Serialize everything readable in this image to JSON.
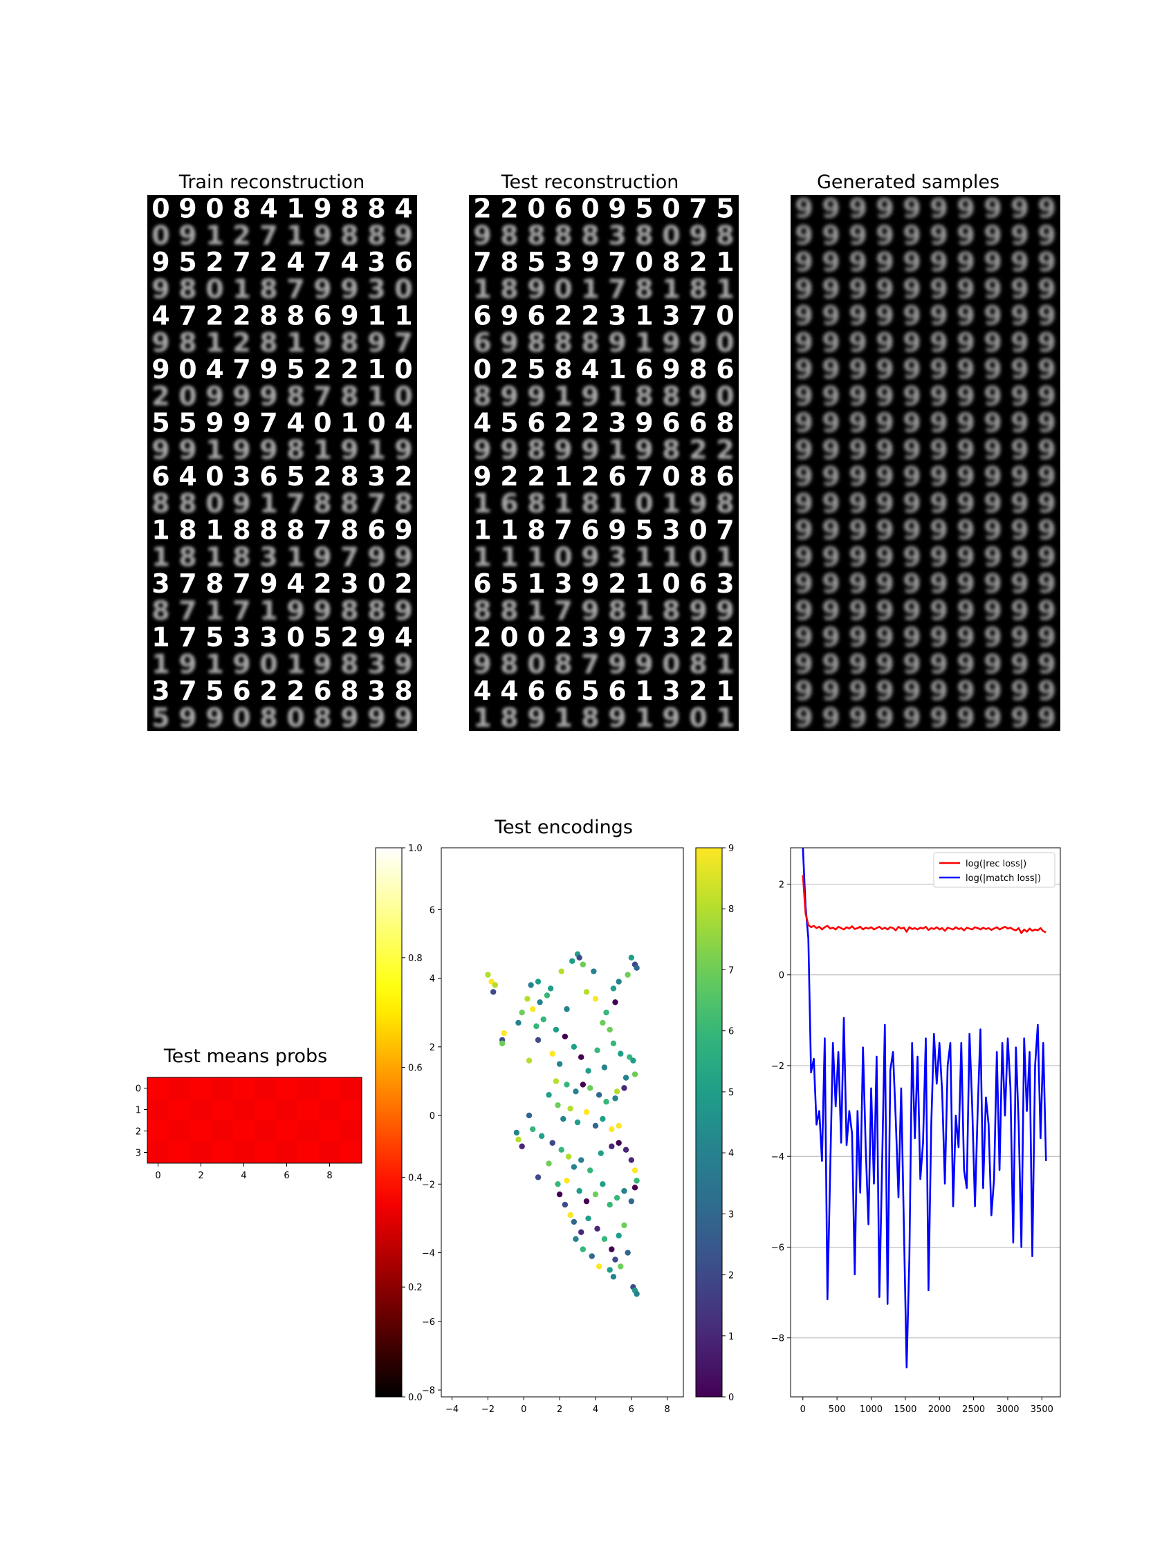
{
  "titles": {
    "train": "Train reconstruction",
    "test": "Test reconstruction",
    "generated": "Generated samples",
    "means": "Test means probs",
    "encodings": "Test encodings"
  },
  "image_grids": {
    "train_rows": [
      "0908419884",
      "0912719889",
      "9527247436",
      "9801879930",
      "4722886911",
      "9812819897",
      "9047952210",
      "2099987810",
      "5599740104",
      "9919981919",
      "6403652832",
      "8809178878",
      "1818887869",
      "1818319799",
      "3787942302",
      "8717199889",
      "1753305294",
      "1919019839",
      "3756226838",
      "5990808999"
    ],
    "test_rows": [
      "2206095075",
      "9888838098",
      "7853970821",
      "1890178181",
      "6962231370",
      "6988891990",
      "0258416986",
      "8991918890",
      "4562239668",
      "9989919822",
      "9221267086",
      "1681810198",
      "1187695307",
      "1110931101",
      "6513921063",
      "8817981899",
      "2002397322",
      "9808799081",
      "4466561321",
      "1891891901"
    ],
    "generated_glyph": "9"
  },
  "chart_data": [
    {
      "type": "heatmap",
      "title": "Test means probs",
      "rows": 4,
      "cols": 10,
      "xticks": [
        "0",
        "2",
        "4",
        "6",
        "8"
      ],
      "yticks": [
        "0",
        "1",
        "2",
        "3"
      ],
      "colormap": "hot",
      "values": [
        [
          0.36,
          0.35,
          0.36,
          0.35,
          0.36,
          0.35,
          0.36,
          0.35,
          0.36,
          0.35
        ],
        [
          0.35,
          0.36,
          0.35,
          0.36,
          0.35,
          0.36,
          0.35,
          0.36,
          0.35,
          0.36
        ],
        [
          0.36,
          0.35,
          0.36,
          0.35,
          0.36,
          0.35,
          0.36,
          0.35,
          0.36,
          0.35
        ],
        [
          0.35,
          0.36,
          0.35,
          0.36,
          0.35,
          0.36,
          0.35,
          0.36,
          0.35,
          0.36
        ]
      ],
      "colorbar": {
        "range": [
          0,
          1
        ],
        "ticks": [
          "0.0",
          "0.2",
          "0.4",
          "0.6",
          "0.8",
          "1.0"
        ]
      }
    },
    {
      "type": "scatter",
      "title": "Test encodings",
      "xlim": [
        -4.6,
        8.9
      ],
      "ylim": [
        -8.2,
        7.8
      ],
      "xticks": [
        "-4",
        "-2",
        "0",
        "2",
        "4",
        "6",
        "8"
      ],
      "yticks": [
        "-8",
        "-6",
        "-4",
        "-2",
        "0",
        "2",
        "4",
        "6"
      ],
      "colormap": "viridis",
      "colorbar": {
        "range": [
          0,
          9
        ],
        "ticks": [
          "0",
          "1",
          "2",
          "3",
          "4",
          "5",
          "6",
          "7",
          "8",
          "9"
        ]
      },
      "points": [
        [
          -2.0,
          4.1,
          8
        ],
        [
          -1.8,
          3.9,
          9
        ],
        [
          -1.6,
          3.8,
          8
        ],
        [
          -1.7,
          3.6,
          2
        ],
        [
          -1.2,
          2.2,
          2
        ],
        [
          -1.1,
          2.4,
          9
        ],
        [
          -1.2,
          2.1,
          7
        ],
        [
          -0.3,
          2.7,
          4
        ],
        [
          -0.1,
          3.0,
          7
        ],
        [
          0.2,
          3.4,
          8
        ],
        [
          0.4,
          3.8,
          4
        ],
        [
          0.5,
          3.1,
          9
        ],
        [
          0.8,
          3.9,
          5
        ],
        [
          0.9,
          3.3,
          4
        ],
        [
          1.1,
          2.8,
          6
        ],
        [
          1.3,
          3.5,
          6
        ],
        [
          0.7,
          2.6,
          6
        ],
        [
          1.5,
          3.7,
          5
        ],
        [
          1.8,
          2.5,
          5
        ],
        [
          2.1,
          4.2,
          8
        ],
        [
          2.4,
          3.1,
          4
        ],
        [
          2.7,
          4.5,
          5
        ],
        [
          3.0,
          4.7,
          5
        ],
        [
          3.1,
          4.6,
          2
        ],
        [
          3.3,
          4.4,
          7
        ],
        [
          3.5,
          3.6,
          8
        ],
        [
          3.9,
          4.2,
          4
        ],
        [
          4.0,
          3.4,
          9
        ],
        [
          4.4,
          2.7,
          7
        ],
        [
          4.6,
          3.0,
          6
        ],
        [
          5.0,
          3.7,
          5
        ],
        [
          5.3,
          3.9,
          4
        ],
        [
          5.1,
          3.3,
          0
        ],
        [
          4.8,
          2.5,
          7
        ],
        [
          5.8,
          4.1,
          7
        ],
        [
          6.0,
          4.6,
          5
        ],
        [
          6.2,
          4.4,
          2
        ],
        [
          6.3,
          4.3,
          3
        ],
        [
          0.3,
          1.6,
          8
        ],
        [
          0.8,
          2.2,
          2
        ],
        [
          1.6,
          1.8,
          9
        ],
        [
          2.0,
          1.5,
          4
        ],
        [
          2.3,
          2.3,
          0
        ],
        [
          2.8,
          2.0,
          5
        ],
        [
          3.2,
          1.7,
          0
        ],
        [
          3.6,
          1.3,
          5
        ],
        [
          4.1,
          1.9,
          6
        ],
        [
          4.5,
          1.4,
          4
        ],
        [
          5.0,
          2.1,
          6
        ],
        [
          5.4,
          1.8,
          5
        ],
        [
          5.9,
          1.7,
          6
        ],
        [
          6.1,
          1.6,
          5
        ],
        [
          5.7,
          1.1,
          4
        ],
        [
          6.2,
          1.2,
          7
        ],
        [
          1.8,
          1.0,
          8
        ],
        [
          2.4,
          0.9,
          6
        ],
        [
          2.9,
          0.7,
          4
        ],
        [
          3.3,
          0.9,
          0
        ],
        [
          3.7,
          0.8,
          7
        ],
        [
          4.2,
          0.6,
          3
        ],
        [
          4.6,
          0.4,
          6
        ],
        [
          5.1,
          0.5,
          4
        ],
        [
          5.6,
          0.8,
          1
        ],
        [
          1.4,
          0.6,
          5
        ],
        [
          1.9,
          0.3,
          7
        ],
        [
          2.2,
          -0.1,
          4
        ],
        [
          2.6,
          0.2,
          8
        ],
        [
          3.0,
          -0.2,
          5
        ],
        [
          3.5,
          0.1,
          9
        ],
        [
          4.0,
          -0.3,
          3
        ],
        [
          4.4,
          -0.1,
          5
        ],
        [
          4.9,
          -0.4,
          9
        ],
        [
          5.3,
          -0.3,
          9
        ],
        [
          5.2,
          0.7,
          8
        ],
        [
          0.3,
          0.0,
          3
        ],
        [
          -0.4,
          -0.5,
          4
        ],
        [
          -0.3,
          -0.7,
          8
        ],
        [
          -0.1,
          -0.9,
          1
        ],
        [
          0.5,
          -0.4,
          6
        ],
        [
          1.0,
          -0.6,
          5
        ],
        [
          1.6,
          -0.8,
          2
        ],
        [
          2.1,
          -1.0,
          6
        ],
        [
          2.5,
          -1.2,
          8
        ],
        [
          2.8,
          -1.5,
          4
        ],
        [
          3.2,
          -1.3,
          4
        ],
        [
          3.7,
          -1.6,
          6
        ],
        [
          4.3,
          -1.1,
          5
        ],
        [
          4.9,
          -0.9,
          1
        ],
        [
          5.3,
          -0.8,
          0
        ],
        [
          5.7,
          -1.0,
          1
        ],
        [
          6.0,
          -1.3,
          1
        ],
        [
          6.2,
          -1.6,
          9
        ],
        [
          6.3,
          -1.9,
          6
        ],
        [
          0.8,
          -1.8,
          2
        ],
        [
          1.4,
          -1.4,
          7
        ],
        [
          1.9,
          -2.0,
          6
        ],
        [
          2.4,
          -1.9,
          9
        ],
        [
          3.1,
          -2.2,
          5
        ],
        [
          3.5,
          -2.5,
          0
        ],
        [
          4.0,
          -2.3,
          7
        ],
        [
          4.4,
          -2.0,
          5
        ],
        [
          4.8,
          -2.6,
          6
        ],
        [
          5.2,
          -2.4,
          6
        ],
        [
          5.6,
          -2.2,
          4
        ],
        [
          6.0,
          -2.5,
          3
        ],
        [
          6.2,
          -2.1,
          0
        ],
        [
          2.0,
          -2.3,
          0
        ],
        [
          2.3,
          -2.6,
          2
        ],
        [
          2.6,
          -2.9,
          9
        ],
        [
          2.8,
          -3.1,
          3
        ],
        [
          3.2,
          -3.4,
          1
        ],
        [
          3.6,
          -3.0,
          5
        ],
        [
          4.1,
          -3.3,
          1
        ],
        [
          4.5,
          -3.6,
          6
        ],
        [
          4.9,
          -3.9,
          0
        ],
        [
          5.3,
          -3.5,
          5
        ],
        [
          5.6,
          -3.2,
          7
        ],
        [
          2.9,
          -3.6,
          4
        ],
        [
          3.3,
          -3.9,
          6
        ],
        [
          3.8,
          -4.1,
          3
        ],
        [
          4.2,
          -4.4,
          9
        ],
        [
          4.8,
          -4.5,
          5
        ],
        [
          5.1,
          -4.2,
          2
        ],
        [
          5.4,
          -4.4,
          7
        ],
        [
          5.0,
          -4.7,
          4
        ],
        [
          5.8,
          -4.0,
          3
        ],
        [
          6.1,
          -5.0,
          2
        ],
        [
          6.2,
          -5.1,
          5
        ],
        [
          6.3,
          -5.2,
          4
        ]
      ]
    },
    {
      "type": "line",
      "xlim": [
        -180,
        3770
      ],
      "ylim": [
        -9.3,
        2.8
      ],
      "xticks": [
        "0",
        "500",
        "1000",
        "1500",
        "2000",
        "2500",
        "3000",
        "3500"
      ],
      "yticks": [
        "-8",
        "-6",
        "-4",
        "-2",
        "0",
        "2"
      ],
      "grid": "horizontal",
      "legend": "top-right",
      "series": [
        {
          "name": "log(|rec loss|)",
          "color": "#ff0000",
          "x": [
            0,
            40,
            80,
            120,
            160,
            200,
            240,
            280,
            320,
            360,
            400,
            440,
            480,
            520,
            560,
            600,
            640,
            680,
            720,
            760,
            800,
            840,
            880,
            920,
            960,
            1000,
            1040,
            1080,
            1120,
            1160,
            1200,
            1240,
            1280,
            1320,
            1360,
            1400,
            1440,
            1480,
            1520,
            1560,
            1600,
            1640,
            1680,
            1720,
            1760,
            1800,
            1840,
            1880,
            1920,
            1960,
            2000,
            2040,
            2080,
            2120,
            2160,
            2200,
            2240,
            2280,
            2320,
            2360,
            2400,
            2440,
            2480,
            2520,
            2560,
            2600,
            2640,
            2680,
            2720,
            2760,
            2800,
            2840,
            2880,
            2920,
            2960,
            3000,
            3040,
            3080,
            3120,
            3160,
            3200,
            3240,
            3280,
            3320,
            3360,
            3400,
            3440,
            3480,
            3520,
            3560
          ],
          "values": [
            2.2,
            1.35,
            1.1,
            1.05,
            1.08,
            1.03,
            1.06,
            1.0,
            1.05,
            1.08,
            1.02,
            1.04,
            1.0,
            1.06,
            1.03,
            1.0,
            1.05,
            1.02,
            1.07,
            1.01,
            1.03,
            1.06,
            1.0,
            1.04,
            1.02,
            1.05,
            1.0,
            1.03,
            1.06,
            1.01,
            1.04,
            1.0,
            1.05,
            1.03,
            0.98,
            1.06,
            1.02,
            1.04,
            0.95,
            1.05,
            1.01,
            1.03,
            1.0,
            1.04,
            1.02,
            1.06,
            0.99,
            1.03,
            1.01,
            1.05,
            1.0,
            1.03,
            0.97,
            1.04,
            1.02,
            1.0,
            1.05,
            1.01,
            1.03,
            0.98,
            1.04,
            1.02,
            1.0,
            1.05,
            1.03,
            1.0,
            1.04,
            1.01,
            1.03,
            0.99,
            1.02,
            1.05,
            1.0,
            1.03,
            1.06,
            1.02,
            1.04,
            1.0,
            0.98,
            1.03,
            0.92,
            1.0,
            0.95,
            1.02,
            0.97,
            1.0,
            0.98,
            1.03,
            0.96,
            0.94
          ]
        },
        {
          "name": "log(|match loss|)",
          "color": "#0000ff",
          "x": [
            0,
            40,
            80,
            120,
            160,
            200,
            240,
            280,
            320,
            360,
            400,
            440,
            480,
            520,
            560,
            600,
            640,
            680,
            720,
            760,
            800,
            840,
            880,
            920,
            960,
            1000,
            1040,
            1080,
            1120,
            1160,
            1200,
            1240,
            1280,
            1320,
            1360,
            1400,
            1440,
            1480,
            1520,
            1560,
            1600,
            1640,
            1680,
            1720,
            1760,
            1800,
            1840,
            1880,
            1920,
            1960,
            2000,
            2040,
            2080,
            2120,
            2160,
            2200,
            2240,
            2280,
            2320,
            2360,
            2400,
            2440,
            2480,
            2520,
            2560,
            2600,
            2640,
            2680,
            2720,
            2760,
            2800,
            2840,
            2880,
            2920,
            2960,
            3000,
            3040,
            3080,
            3120,
            3160,
            3200,
            3240,
            3280,
            3320,
            3360,
            3400,
            3440,
            3480,
            3520,
            3560
          ],
          "values": [
            2.8,
            1.5,
            0.8,
            -2.15,
            -1.85,
            -3.3,
            -3.0,
            -4.1,
            -1.4,
            -7.15,
            -4.3,
            -1.5,
            -2.9,
            -1.7,
            -3.7,
            -0.95,
            -3.75,
            -3.0,
            -3.5,
            -6.6,
            -3.0,
            -4.8,
            -1.6,
            -3.8,
            -5.5,
            -2.5,
            -4.6,
            -1.8,
            -7.1,
            -4.2,
            -1.1,
            -7.25,
            -2.1,
            -1.7,
            -3.2,
            -4.9,
            -2.5,
            -5.6,
            -8.65,
            -6.2,
            -1.5,
            -3.6,
            -1.8,
            -4.5,
            -3.7,
            -1.4,
            -6.95,
            -3.3,
            -1.3,
            -2.4,
            -1.5,
            -2.6,
            -4.6,
            -2.0,
            -1.5,
            -5.1,
            -3.1,
            -3.8,
            -1.5,
            -4.3,
            -4.7,
            -1.3,
            -2.9,
            -5.1,
            -3.0,
            -1.2,
            -4.7,
            -2.7,
            -3.3,
            -5.3,
            -4.5,
            -1.7,
            -4.3,
            -1.5,
            -3.1,
            -1.4,
            -2.5,
            -5.9,
            -1.6,
            -3.3,
            -6.0,
            -1.4,
            -3.0,
            -1.7,
            -6.2,
            -2.0,
            -1.1,
            -3.6,
            -1.5,
            -4.1
          ]
        }
      ]
    }
  ]
}
